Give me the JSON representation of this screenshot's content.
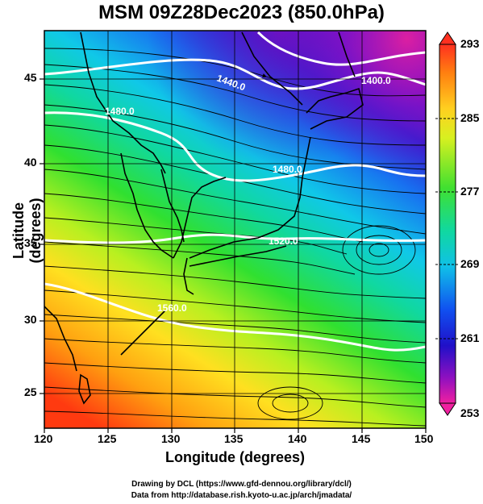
{
  "title": "MSM 09Z28Dec2023 (850.0hPa)",
  "map": {
    "x_label": "Longitude (degrees)",
    "y_label": "Latitude  (degrees)",
    "lon_range": [
      120,
      150
    ],
    "lat_range": [
      23,
      48
    ],
    "lon_ticks": [
      "120",
      "125",
      "130",
      "135",
      "140",
      "145",
      "150"
    ],
    "lat_ticks": [
      "25",
      "30",
      "35",
      "40",
      "45"
    ],
    "contour_labels": [
      "1400.0",
      "1440.0",
      "1480.0",
      "1480.0",
      "1520.0",
      "1560.0"
    ]
  },
  "colorbar": {
    "labels": [
      "293",
      "285",
      "277",
      "269",
      "261",
      "253"
    ]
  },
  "credits": {
    "line1": "Drawing by DCL (https://www.gfd-dennou.org/library/dcl/)",
    "line2": "Data from http://database.rish.kyoto-u.ac.jp/arch/jmadata/"
  }
}
